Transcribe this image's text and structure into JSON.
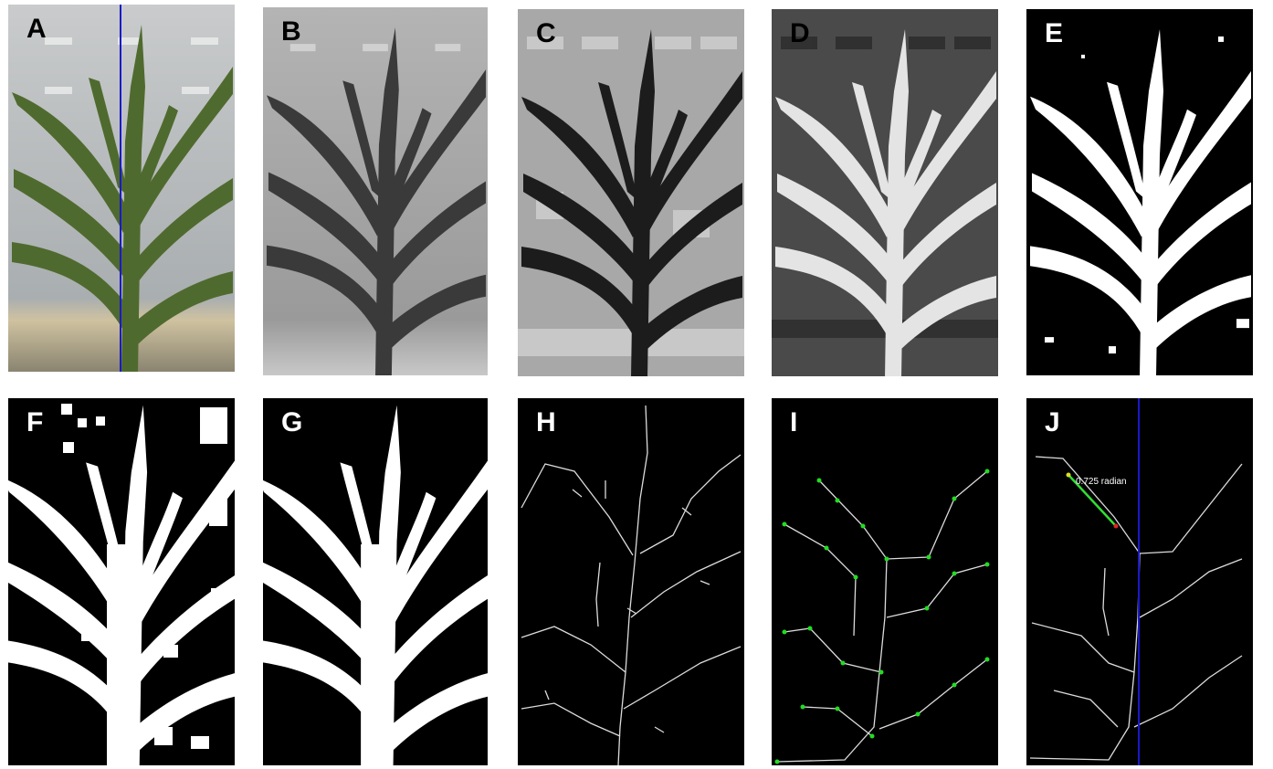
{
  "panels": {
    "a": {
      "label": "A"
    },
    "b": {
      "label": "B"
    },
    "c": {
      "label": "C"
    },
    "d": {
      "label": "D"
    },
    "e": {
      "label": "E"
    },
    "f": {
      "label": "F"
    },
    "g": {
      "label": "G"
    },
    "h": {
      "label": "H"
    },
    "i": {
      "label": "I"
    },
    "j": {
      "label": "J",
      "angle_text": "0.725 radian"
    }
  },
  "colors": {
    "center_line": "#1a1ac8",
    "node_marker": "#22dd22",
    "angle_line": "#33dd33",
    "angle_end": "#dd2222",
    "angle_start": "#dddd22"
  }
}
